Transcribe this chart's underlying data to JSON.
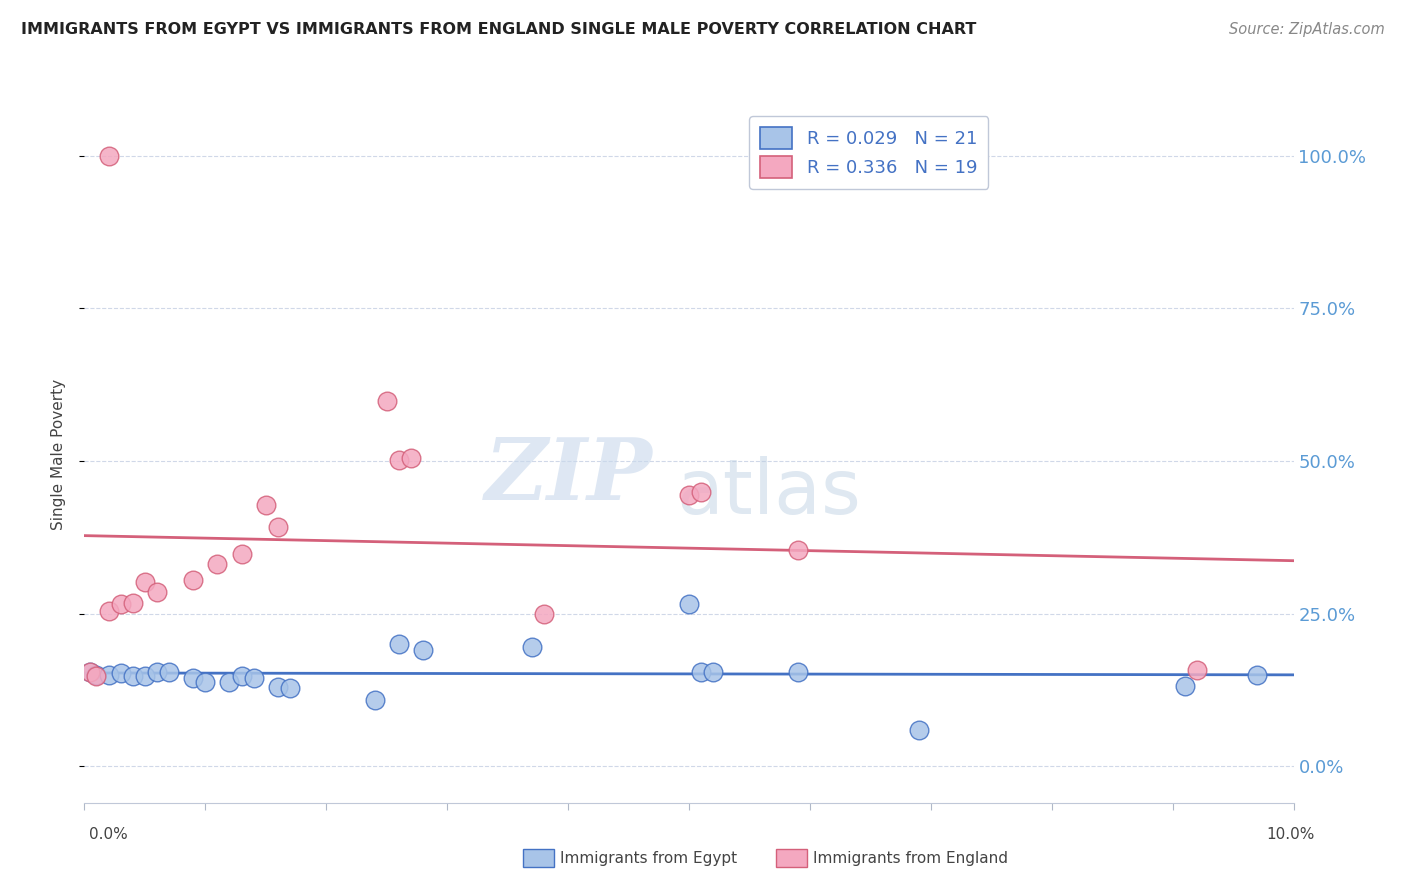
{
  "title": "IMMIGRANTS FROM EGYPT VS IMMIGRANTS FROM ENGLAND SINGLE MALE POVERTY CORRELATION CHART",
  "source": "Source: ZipAtlas.com",
  "ylabel": "Single Male Poverty",
  "legend_egypt": "Immigrants from Egypt",
  "legend_england": "Immigrants from England",
  "r_egypt": 0.029,
  "n_egypt": 21,
  "r_england": 0.336,
  "n_england": 19,
  "egypt_color": "#a8c4e8",
  "england_color": "#f4a8c0",
  "egypt_edge_color": "#4472c4",
  "england_edge_color": "#d4607a",
  "egypt_line_color": "#4472c4",
  "england_line_color": "#d4607a",
  "right_axis_color": "#5b9bd5",
  "background_color": "#ffffff",
  "grid_color": "#d0d8e8",
  "xlim": [
    0.0,
    0.1
  ],
  "ylim": [
    -0.06,
    1.08
  ],
  "egypt_x": [
    0.0005,
    0.001,
    0.002,
    0.003,
    0.004,
    0.005,
    0.006,
    0.007,
    0.009,
    0.01,
    0.012,
    0.013,
    0.014,
    0.016,
    0.017,
    0.024,
    0.026,
    0.028,
    0.037,
    0.05,
    0.051,
    0.052,
    0.059,
    0.069,
    0.091,
    0.097
  ],
  "egypt_y": [
    0.155,
    0.15,
    0.15,
    0.152,
    0.148,
    0.148,
    0.155,
    0.155,
    0.145,
    0.138,
    0.138,
    0.148,
    0.145,
    0.13,
    0.128,
    0.108,
    0.2,
    0.19,
    0.195,
    0.265,
    0.155,
    0.155,
    0.155,
    0.06,
    0.132,
    0.15
  ],
  "england_x": [
    0.0005,
    0.001,
    0.002,
    0.003,
    0.004,
    0.005,
    0.006,
    0.009,
    0.011,
    0.013,
    0.015,
    0.016,
    0.025,
    0.026,
    0.027,
    0.038,
    0.05,
    0.051,
    0.059,
    0.092,
    0.002
  ],
  "england_y": [
    0.155,
    0.148,
    0.255,
    0.265,
    0.268,
    0.302,
    0.285,
    0.305,
    0.332,
    0.348,
    0.428,
    0.392,
    0.598,
    0.502,
    0.505,
    0.25,
    0.445,
    0.45,
    0.355,
    0.158,
    1.0
  ],
  "ytick_positions": [
    0.0,
    0.25,
    0.5,
    0.75,
    1.0
  ],
  "ytick_labels_right": [
    "0.0%",
    "25.0%",
    "50.0%",
    "75.0%",
    "100.0%"
  ],
  "xtick_positions": [
    0.0,
    0.01,
    0.02,
    0.03,
    0.04,
    0.05,
    0.06,
    0.07,
    0.08,
    0.09,
    0.1
  ],
  "marker_size": 180
}
